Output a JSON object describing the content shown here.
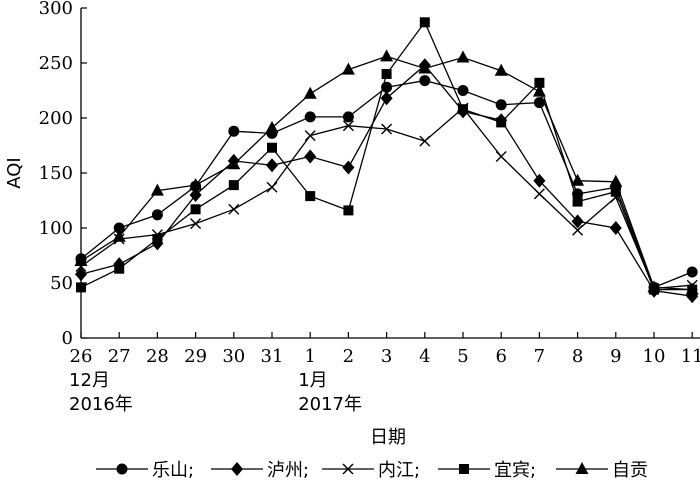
{
  "chart_data": {
    "type": "line",
    "ylabel": "AQI",
    "xlabel": "日期",
    "ylim": [
      0,
      300
    ],
    "yticks": [
      0,
      50,
      100,
      150,
      200,
      250,
      300
    ],
    "categories": [
      "26",
      "27",
      "28",
      "29",
      "30",
      "31",
      "1",
      "2",
      "3",
      "4",
      "5",
      "6",
      "7",
      "8",
      "9",
      "10",
      "11"
    ],
    "category_sublabels": [
      {
        "category": "26",
        "lines": [
          "12月",
          "2016年"
        ]
      },
      {
        "category": "1",
        "lines": [
          "1月",
          "2017年"
        ]
      }
    ],
    "grid": false,
    "legend_position": "bottom",
    "series": [
      {
        "name": "乐山",
        "marker": "circle",
        "values": [
          72,
          100,
          112,
          138,
          188,
          186,
          201,
          201,
          228,
          234,
          225,
          212,
          214,
          131,
          137,
          46,
          60
        ]
      },
      {
        "name": "泸州",
        "marker": "diamond",
        "values": [
          58,
          67,
          86,
          130,
          161,
          157,
          165,
          155,
          218,
          248,
          206,
          198,
          143,
          106,
          100,
          43,
          38
        ]
      },
      {
        "name": "内江",
        "marker": "x",
        "values": [
          65,
          90,
          94,
          104,
          117,
          137,
          184,
          193,
          190,
          179,
          209,
          165,
          131,
          98,
          128,
          45,
          48
        ]
      },
      {
        "name": "宜宾",
        "marker": "square",
        "values": [
          46,
          63,
          90,
          117,
          139,
          173,
          129,
          116,
          240,
          287,
          208,
          196,
          232,
          124,
          133,
          44,
          44
        ]
      },
      {
        "name": "自贡",
        "marker": "triangle",
        "values": [
          70,
          92,
          134,
          139,
          158,
          191,
          222,
          244,
          256,
          245,
          255,
          243,
          224,
          143,
          142,
          46,
          44
        ]
      }
    ]
  }
}
